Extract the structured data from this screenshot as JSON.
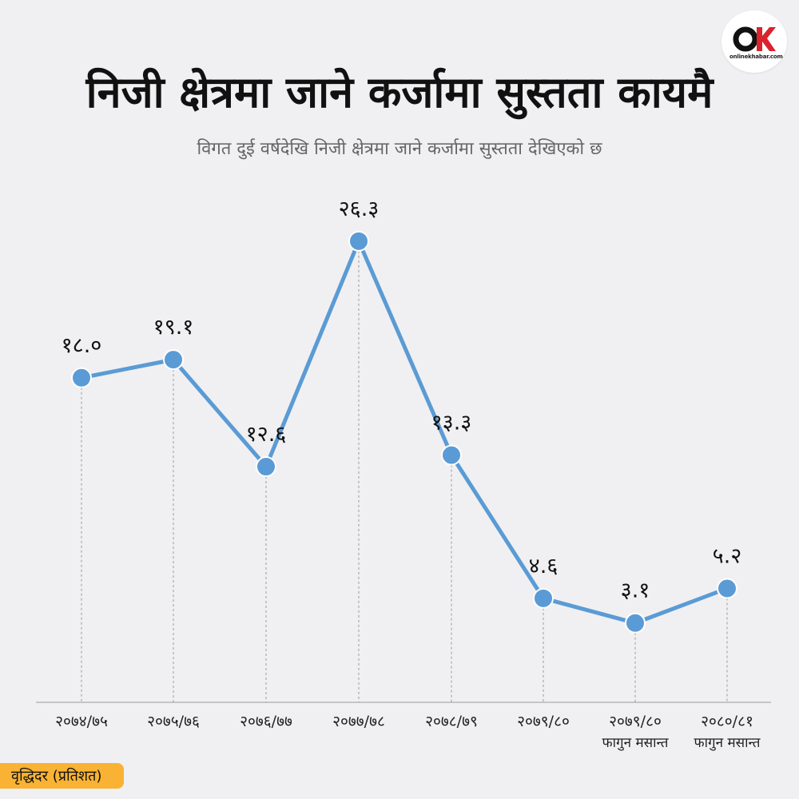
{
  "brand": {
    "logo_text": "onlinekhabar.com",
    "accent": "#d9232d"
  },
  "header": {
    "title": "निजी क्षेत्रमा जाने कर्जामा सुस्तता कायमै",
    "subtitle": "विगत दुई वर्षदेखि निजी क्षेत्रमा जाने कर्जामा सुस्तता देखिएको छ"
  },
  "footer": {
    "unit_label": "वृद्धिदर (प्रतिशत)"
  },
  "chart_data": {
    "type": "line",
    "title": "निजी क्षेत्रमा जाने कर्जामा सुस्तता कायमै",
    "ylabel": "वृद्धिदर (प्रतिशत)",
    "categories": [
      [
        "२०७४/७५"
      ],
      [
        "२०७५/७६"
      ],
      [
        "२०७६/७७"
      ],
      [
        "२०७७/७८"
      ],
      [
        "२०७८/७९"
      ],
      [
        "२०७९/८०"
      ],
      [
        "२०७९/८०",
        "फागुन मसान्त"
      ],
      [
        "२०८०/८१",
        "फागुन मसान्त"
      ]
    ],
    "values": [
      18.0,
      19.1,
      12.6,
      26.3,
      13.3,
      4.6,
      3.1,
      5.2
    ],
    "value_labels": [
      "१८.०",
      "१९.१",
      "१२.६",
      "२६.३",
      "१३.३",
      "४.६",
      "३.१",
      "५.२"
    ],
    "ylim": [
      0,
      30
    ],
    "grid": false,
    "line_color": "#5b9bd5",
    "marker_color": "#5b9bd5"
  }
}
